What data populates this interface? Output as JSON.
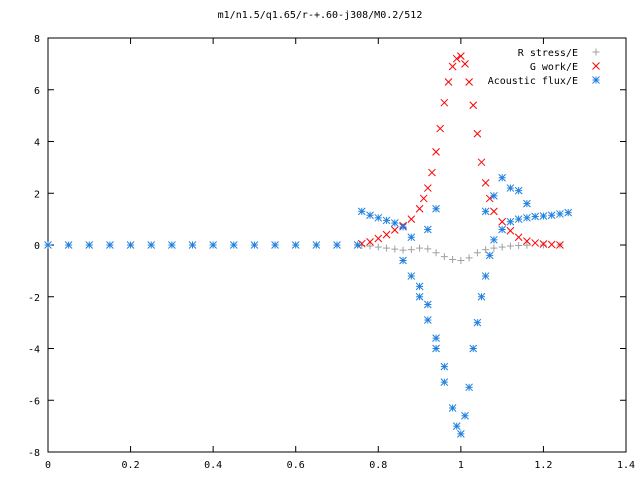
{
  "chart_data": {
    "type": "scatter",
    "title": "m1/n1.5/q1.65/r-+.60-j308/M0.2/512",
    "xlabel": "",
    "ylabel": "",
    "xlim": [
      0,
      1.4
    ],
    "ylim": [
      -8,
      8
    ],
    "x_ticks": [
      "0",
      "0.2",
      "0.4",
      "0.6",
      "0.8",
      "1",
      "1.2",
      "1.4"
    ],
    "y_ticks": [
      "8",
      "6",
      "4",
      "2",
      "0",
      "-2",
      "-4",
      "-6",
      "-8"
    ],
    "legend_position": "top-right",
    "series": [
      {
        "name": "R stress/E",
        "marker": "+",
        "color": "#a0a0a0",
        "points": [
          [
            0.76,
            -0.02
          ],
          [
            0.78,
            -0.04
          ],
          [
            0.8,
            -0.08
          ],
          [
            0.82,
            -0.12
          ],
          [
            0.84,
            -0.16
          ],
          [
            0.86,
            -0.2
          ],
          [
            0.88,
            -0.18
          ],
          [
            0.9,
            -0.12
          ],
          [
            0.92,
            -0.15
          ],
          [
            0.94,
            -0.3
          ],
          [
            0.96,
            -0.45
          ],
          [
            0.98,
            -0.56
          ],
          [
            1.0,
            -0.6
          ],
          [
            1.02,
            -0.5
          ],
          [
            1.04,
            -0.3
          ],
          [
            1.06,
            -0.18
          ],
          [
            1.08,
            -0.12
          ],
          [
            1.1,
            -0.08
          ],
          [
            1.12,
            -0.04
          ],
          [
            1.14,
            -0.02
          ],
          [
            1.16,
            -0.01
          ],
          [
            1.2,
            0.0
          ],
          [
            1.24,
            0.0
          ]
        ]
      },
      {
        "name": "G work/E",
        "marker": "x",
        "color": "#ff0000",
        "points": [
          [
            0.76,
            0.05
          ],
          [
            0.78,
            0.12
          ],
          [
            0.8,
            0.25
          ],
          [
            0.82,
            0.4
          ],
          [
            0.84,
            0.58
          ],
          [
            0.86,
            0.75
          ],
          [
            0.88,
            1.0
          ],
          [
            0.9,
            1.4
          ],
          [
            0.91,
            1.8
          ],
          [
            0.92,
            2.2
          ],
          [
            0.93,
            2.8
          ],
          [
            0.94,
            3.6
          ],
          [
            0.95,
            4.5
          ],
          [
            0.96,
            5.5
          ],
          [
            0.97,
            6.3
          ],
          [
            0.98,
            6.9
          ],
          [
            0.99,
            7.2
          ],
          [
            1.0,
            7.3
          ],
          [
            1.01,
            7.0
          ],
          [
            1.02,
            6.3
          ],
          [
            1.03,
            5.4
          ],
          [
            1.04,
            4.3
          ],
          [
            1.05,
            3.2
          ],
          [
            1.06,
            2.4
          ],
          [
            1.07,
            1.8
          ],
          [
            1.08,
            1.3
          ],
          [
            1.1,
            0.9
          ],
          [
            1.12,
            0.55
          ],
          [
            1.14,
            0.3
          ],
          [
            1.16,
            0.15
          ],
          [
            1.18,
            0.08
          ],
          [
            1.2,
            0.04
          ],
          [
            1.22,
            0.02
          ],
          [
            1.24,
            0.0
          ]
        ]
      },
      {
        "name": "Acoustic flux/E",
        "marker": "*",
        "color": "#2080e0",
        "points": [
          [
            0.0,
            0.0
          ],
          [
            0.05,
            0.0
          ],
          [
            0.1,
            0.0
          ],
          [
            0.15,
            0.0
          ],
          [
            0.2,
            0.0
          ],
          [
            0.25,
            0.0
          ],
          [
            0.3,
            0.0
          ],
          [
            0.35,
            0.0
          ],
          [
            0.4,
            0.0
          ],
          [
            0.45,
            0.0
          ],
          [
            0.5,
            0.0
          ],
          [
            0.55,
            0.0
          ],
          [
            0.6,
            0.0
          ],
          [
            0.65,
            0.0
          ],
          [
            0.7,
            0.0
          ],
          [
            0.75,
            0.0
          ],
          [
            0.76,
            1.3
          ],
          [
            0.78,
            1.15
          ],
          [
            0.8,
            1.05
          ],
          [
            0.82,
            0.95
          ],
          [
            0.84,
            0.85
          ],
          [
            0.86,
            0.7
          ],
          [
            0.88,
            0.3
          ],
          [
            0.86,
            -0.6
          ],
          [
            0.88,
            -1.2
          ],
          [
            0.9,
            -1.6
          ],
          [
            0.9,
            -2.0
          ],
          [
            0.92,
            -2.3
          ],
          [
            0.92,
            -2.9
          ],
          [
            0.94,
            -3.6
          ],
          [
            0.94,
            -4.0
          ],
          [
            0.96,
            -4.7
          ],
          [
            0.96,
            -5.3
          ],
          [
            0.98,
            -6.3
          ],
          [
            0.99,
            -7.0
          ],
          [
            1.0,
            -7.3
          ],
          [
            1.01,
            -6.6
          ],
          [
            1.02,
            -5.5
          ],
          [
            1.03,
            -4.0
          ],
          [
            1.04,
            -3.0
          ],
          [
            1.05,
            -2.0
          ],
          [
            1.06,
            -1.2
          ],
          [
            1.07,
            -0.4
          ],
          [
            1.08,
            0.2
          ],
          [
            1.1,
            0.6
          ],
          [
            1.12,
            0.9
          ],
          [
            1.14,
            1.0
          ],
          [
            1.16,
            1.05
          ],
          [
            1.18,
            1.1
          ],
          [
            1.2,
            1.12
          ],
          [
            1.22,
            1.15
          ],
          [
            1.24,
            1.2
          ],
          [
            1.26,
            1.25
          ],
          [
            1.1,
            2.6
          ],
          [
            1.12,
            2.2
          ],
          [
            1.14,
            2.1
          ],
          [
            1.16,
            1.6
          ],
          [
            1.08,
            1.9
          ],
          [
            1.06,
            1.3
          ],
          [
            0.94,
            1.4
          ],
          [
            0.92,
            0.6
          ]
        ]
      }
    ]
  }
}
